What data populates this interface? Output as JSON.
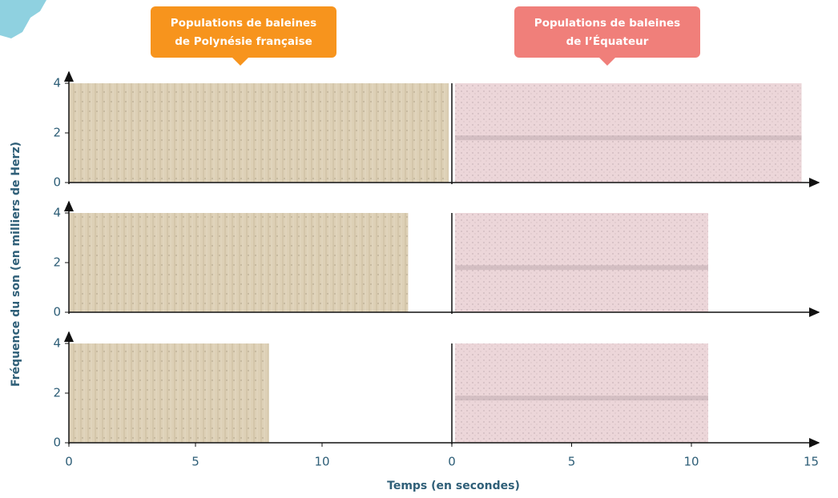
{
  "callouts": [
    {
      "lines": [
        "Populations de baleines",
        "de Polynésie française"
      ]
    },
    {
      "lines": [
        "Populations de baleines",
        "de l’Équateur"
      ]
    }
  ],
  "y_axis_label": "Fréquence du son (en milliers de Herz)",
  "x_axis_label": "Temps (en secondes)",
  "yticks": [
    0,
    2,
    4
  ],
  "ylim": [
    0,
    4
  ],
  "xticks_left": [
    0,
    5,
    10
  ],
  "xticks_right": [
    0,
    5,
    10,
    15
  ],
  "rows": [
    {
      "polynesia_duration": 15,
      "ecuador_duration": 14.6
    },
    {
      "polynesia_duration": 13.4,
      "ecuador_duration": 10.7
    },
    {
      "polynesia_duration": 7.9,
      "ecuador_duration": 10.7
    }
  ]
}
